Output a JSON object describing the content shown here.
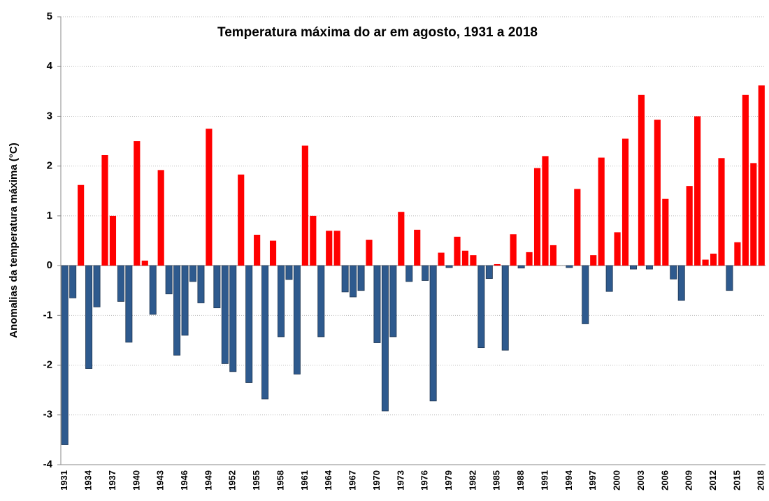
{
  "chart_data": {
    "type": "bar",
    "title": "Temperatura máxima do ar em agosto, 1931 a 2018",
    "y_label": "Anomalias da temperatura máxima (°C)",
    "categories": [
      "1931",
      null,
      null,
      "1934",
      null,
      null,
      "1937",
      null,
      null,
      "1940",
      null,
      null,
      "1943",
      null,
      null,
      "1946",
      null,
      null,
      "1949",
      null,
      null,
      "1952",
      null,
      null,
      "1955",
      null,
      null,
      "1958",
      null,
      null,
      "1961",
      null,
      null,
      "1964",
      null,
      null,
      "1967",
      null,
      null,
      "1970",
      null,
      null,
      "1973",
      null,
      null,
      "1976",
      null,
      null,
      "1979",
      null,
      null,
      "1982",
      null,
      null,
      "1985",
      null,
      null,
      "1988",
      null,
      null,
      "1991",
      null,
      null,
      "1994",
      null,
      null,
      "1997",
      null,
      null,
      "2000",
      null,
      null,
      "2003",
      null,
      null,
      "2006",
      null,
      null,
      "2009",
      null,
      null,
      "2012",
      null,
      null,
      "2015",
      null,
      null,
      "2018"
    ],
    "values": [
      -3.6,
      -0.65,
      1.62,
      -2.07,
      -0.83,
      2.22,
      1.0,
      -0.72,
      -1.54,
      2.5,
      0.1,
      -0.98,
      1.92,
      -0.57,
      -1.8,
      -1.4,
      -0.32,
      -0.75,
      2.75,
      -0.85,
      -1.97,
      -2.13,
      1.83,
      -2.35,
      0.62,
      -2.68,
      0.5,
      -1.43,
      -0.28,
      -2.18,
      2.41,
      1.0,
      -1.43,
      0.7,
      0.7,
      -0.53,
      -0.63,
      -0.5,
      0.52,
      -1.55,
      -2.92,
      -1.43,
      1.08,
      -0.32,
      0.72,
      -0.3,
      -2.72,
      0.26,
      -0.04,
      0.58,
      0.3,
      0.21,
      -1.65,
      -0.26,
      0.03,
      -1.7,
      0.63,
      -0.05,
      0.27,
      1.96,
      2.2,
      0.41,
      0.0,
      -0.04,
      1.54,
      -1.17,
      0.21,
      2.17,
      -0.52,
      0.67,
      2.55,
      -0.07,
      3.43,
      -0.07,
      2.93,
      1.34,
      -0.27,
      -0.7,
      1.6,
      3.0,
      0.12,
      0.24,
      2.16,
      -0.5,
      0.47,
      3.43,
      2.06,
      3.62
    ],
    "positive_color": "#ff0000",
    "negative_color": "#2e5a8e",
    "ylim": [
      -4,
      5
    ],
    "yticks": [
      -4,
      -3,
      -2,
      -1,
      0,
      1,
      2,
      3,
      4,
      5
    ],
    "grid": true
  }
}
